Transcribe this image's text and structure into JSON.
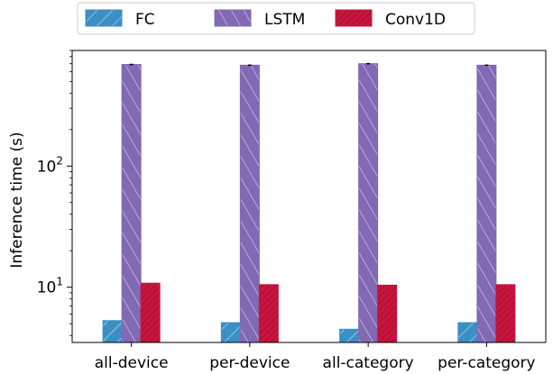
{
  "chart_data": {
    "type": "bar",
    "title": "",
    "xlabel": "",
    "ylabel": "Inference time (s)",
    "yscale": "log",
    "ylim": [
      3.5,
      900
    ],
    "yticks": [
      {
        "value": 10,
        "base": "10",
        "exp": "1"
      },
      {
        "value": 100,
        "base": "10",
        "exp": "2"
      }
    ],
    "categories": [
      "all-device",
      "per-device",
      "all-category",
      "per-category"
    ],
    "series": [
      {
        "name": "FC",
        "values": [
          5.3,
          5.1,
          4.5,
          5.1
        ],
        "color": "#3a8fc4",
        "hatch": "fc"
      },
      {
        "name": "LSTM",
        "values": [
          690,
          680,
          700,
          680
        ],
        "color": "#8169b3",
        "hatch": "lstm"
      },
      {
        "name": "Conv1D",
        "values": [
          10.8,
          10.5,
          10.4,
          10.5
        ],
        "color": "#c8153e",
        "hatch": "conv"
      }
    ],
    "grid": false,
    "legend_position": "top"
  }
}
